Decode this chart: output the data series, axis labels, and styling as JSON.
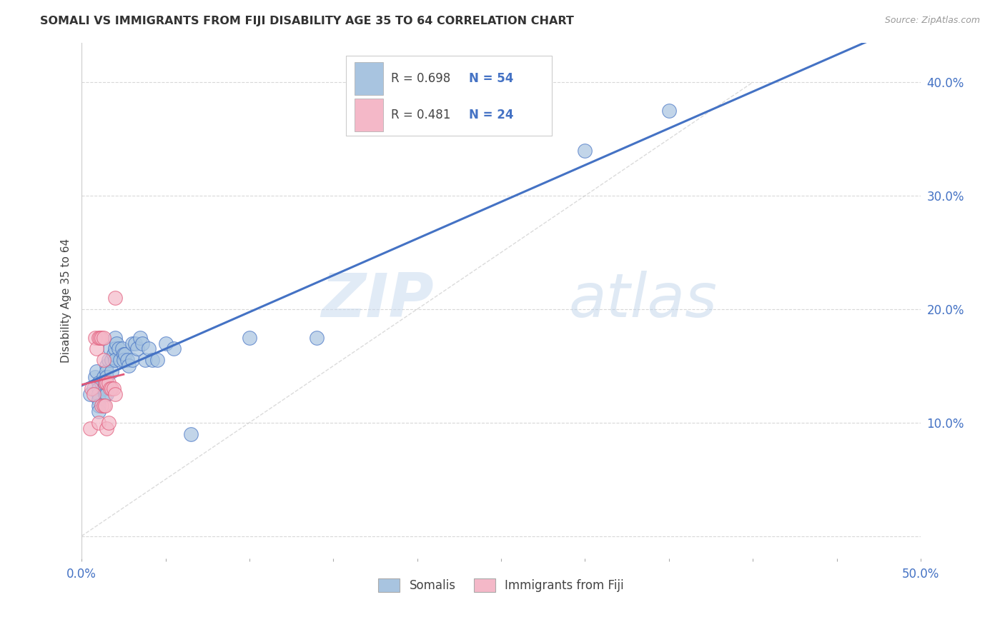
{
  "title": "SOMALI VS IMMIGRANTS FROM FIJI DISABILITY AGE 35 TO 64 CORRELATION CHART",
  "source": "Source: ZipAtlas.com",
  "ylabel": "Disability Age 35 to 64",
  "xlim": [
    0.0,
    0.5
  ],
  "ylim": [
    -0.02,
    0.435
  ],
  "somali_x": [
    0.005,
    0.007,
    0.008,
    0.009,
    0.01,
    0.01,
    0.01,
    0.01,
    0.01,
    0.01,
    0.012,
    0.013,
    0.013,
    0.014,
    0.014,
    0.015,
    0.015,
    0.015,
    0.015,
    0.015,
    0.016,
    0.017,
    0.018,
    0.018,
    0.019,
    0.02,
    0.02,
    0.02,
    0.021,
    0.022,
    0.023,
    0.024,
    0.025,
    0.025,
    0.026,
    0.027,
    0.028,
    0.03,
    0.03,
    0.032,
    0.033,
    0.035,
    0.036,
    0.038,
    0.04,
    0.042,
    0.045,
    0.05,
    0.055,
    0.065,
    0.1,
    0.14,
    0.3,
    0.35
  ],
  "somali_y": [
    0.125,
    0.13,
    0.14,
    0.145,
    0.135,
    0.13,
    0.125,
    0.12,
    0.115,
    0.11,
    0.135,
    0.14,
    0.13,
    0.135,
    0.125,
    0.15,
    0.145,
    0.14,
    0.135,
    0.125,
    0.155,
    0.165,
    0.155,
    0.145,
    0.16,
    0.175,
    0.165,
    0.155,
    0.17,
    0.165,
    0.155,
    0.165,
    0.16,
    0.155,
    0.16,
    0.155,
    0.15,
    0.17,
    0.155,
    0.17,
    0.165,
    0.175,
    0.17,
    0.155,
    0.165,
    0.155,
    0.155,
    0.17,
    0.165,
    0.09,
    0.175,
    0.175,
    0.34,
    0.375
  ],
  "fiji_x": [
    0.005,
    0.006,
    0.007,
    0.008,
    0.009,
    0.01,
    0.01,
    0.011,
    0.012,
    0.012,
    0.013,
    0.013,
    0.013,
    0.014,
    0.014,
    0.015,
    0.015,
    0.016,
    0.016,
    0.017,
    0.018,
    0.019,
    0.02,
    0.02
  ],
  "fiji_y": [
    0.095,
    0.13,
    0.125,
    0.175,
    0.165,
    0.175,
    0.1,
    0.175,
    0.175,
    0.115,
    0.175,
    0.155,
    0.115,
    0.135,
    0.115,
    0.135,
    0.095,
    0.135,
    0.1,
    0.13,
    0.13,
    0.13,
    0.125,
    0.21
  ],
  "somali_color": "#a8c4e0",
  "fiji_color": "#f4b8c8",
  "somali_R": 0.698,
  "somali_N": 54,
  "fiji_R": 0.481,
  "fiji_N": 24,
  "trend_blue_color": "#4472c4",
  "trend_pink_color": "#e05878",
  "watermark_zip": "ZIP",
  "watermark_atlas": "atlas",
  "background_color": "#ffffff",
  "grid_color": "#d8d8d8",
  "legend_R_color": "#555555",
  "legend_N_color": "#4472c4"
}
